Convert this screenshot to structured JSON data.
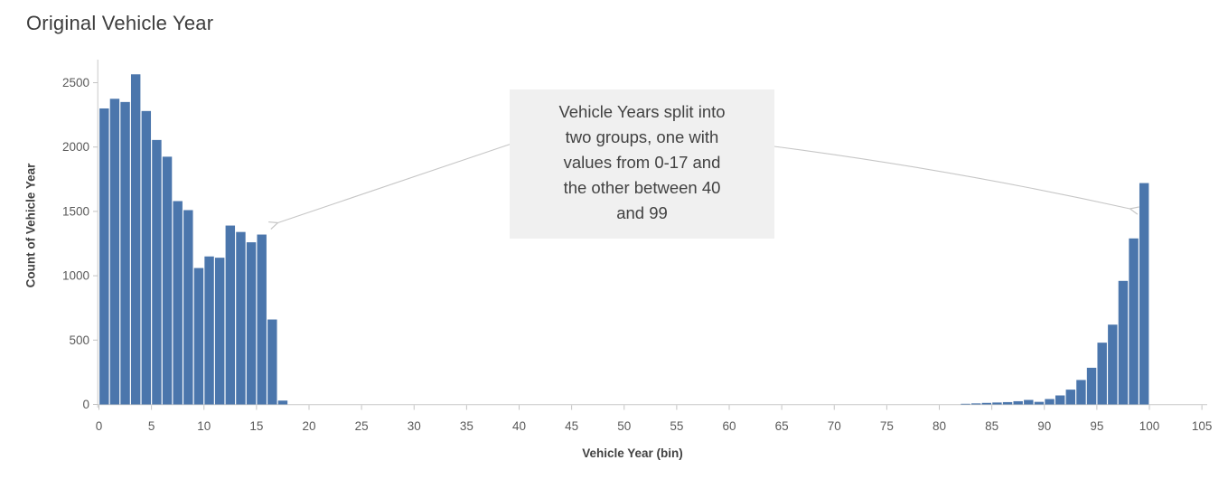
{
  "chart_data": {
    "type": "bar",
    "subtype": "histogram",
    "title": "Original Vehicle Year",
    "xlabel": "Vehicle Year (bin)",
    "ylabel": "Count of Vehicle Year",
    "xlim": [
      0,
      106
    ],
    "ylim": [
      0,
      2650
    ],
    "grid": false,
    "legend": false,
    "x_ticks": [
      0,
      5,
      10,
      15,
      20,
      25,
      30,
      35,
      40,
      45,
      50,
      55,
      60,
      65,
      70,
      75,
      80,
      85,
      90,
      95,
      100,
      105
    ],
    "y_ticks": [
      0,
      500,
      1000,
      1500,
      2000,
      2500
    ],
    "bin_width": 1,
    "bars": [
      {
        "bin": 0,
        "count": 2300
      },
      {
        "bin": 1,
        "count": 2375
      },
      {
        "bin": 2,
        "count": 2350
      },
      {
        "bin": 3,
        "count": 2565
      },
      {
        "bin": 4,
        "count": 2280
      },
      {
        "bin": 5,
        "count": 2055
      },
      {
        "bin": 6,
        "count": 1925
      },
      {
        "bin": 7,
        "count": 1580
      },
      {
        "bin": 8,
        "count": 1510
      },
      {
        "bin": 9,
        "count": 1060
      },
      {
        "bin": 10,
        "count": 1150
      },
      {
        "bin": 11,
        "count": 1140
      },
      {
        "bin": 12,
        "count": 1390
      },
      {
        "bin": 13,
        "count": 1340
      },
      {
        "bin": 14,
        "count": 1260
      },
      {
        "bin": 15,
        "count": 1320
      },
      {
        "bin": 16,
        "count": 660
      },
      {
        "bin": 17,
        "count": 30
      },
      {
        "bin": 82,
        "count": 5
      },
      {
        "bin": 83,
        "count": 8
      },
      {
        "bin": 84,
        "count": 12
      },
      {
        "bin": 85,
        "count": 15
      },
      {
        "bin": 86,
        "count": 18
      },
      {
        "bin": 87,
        "count": 25
      },
      {
        "bin": 88,
        "count": 35
      },
      {
        "bin": 89,
        "count": 20
      },
      {
        "bin": 90,
        "count": 42
      },
      {
        "bin": 91,
        "count": 70
      },
      {
        "bin": 92,
        "count": 115
      },
      {
        "bin": 93,
        "count": 190
      },
      {
        "bin": 94,
        "count": 285
      },
      {
        "bin": 95,
        "count": 480
      },
      {
        "bin": 96,
        "count": 620
      },
      {
        "bin": 97,
        "count": 960
      },
      {
        "bin": 98,
        "count": 1290
      },
      {
        "bin": 99,
        "count": 1720
      }
    ]
  },
  "annotation": {
    "text": "Vehicle Years split into two groups, one with values from 0-17 and the other between 40 and 99",
    "lines": [
      "Vehicle Years split into",
      "two groups, one with",
      "values from 0-17 and",
      "the other between 40",
      "and 99"
    ]
  },
  "colors": {
    "bar": "#4b76ac",
    "axis_line": "#c9c9c9",
    "tick": "#c3c3c3",
    "tick_label": "#5a5a5a",
    "title_text": "#3d3d3d",
    "axis_title_text": "#424242",
    "annotation_bg": "#f0f0f0",
    "annotation_text": "#424242",
    "arrow": "#c6c6c6"
  }
}
